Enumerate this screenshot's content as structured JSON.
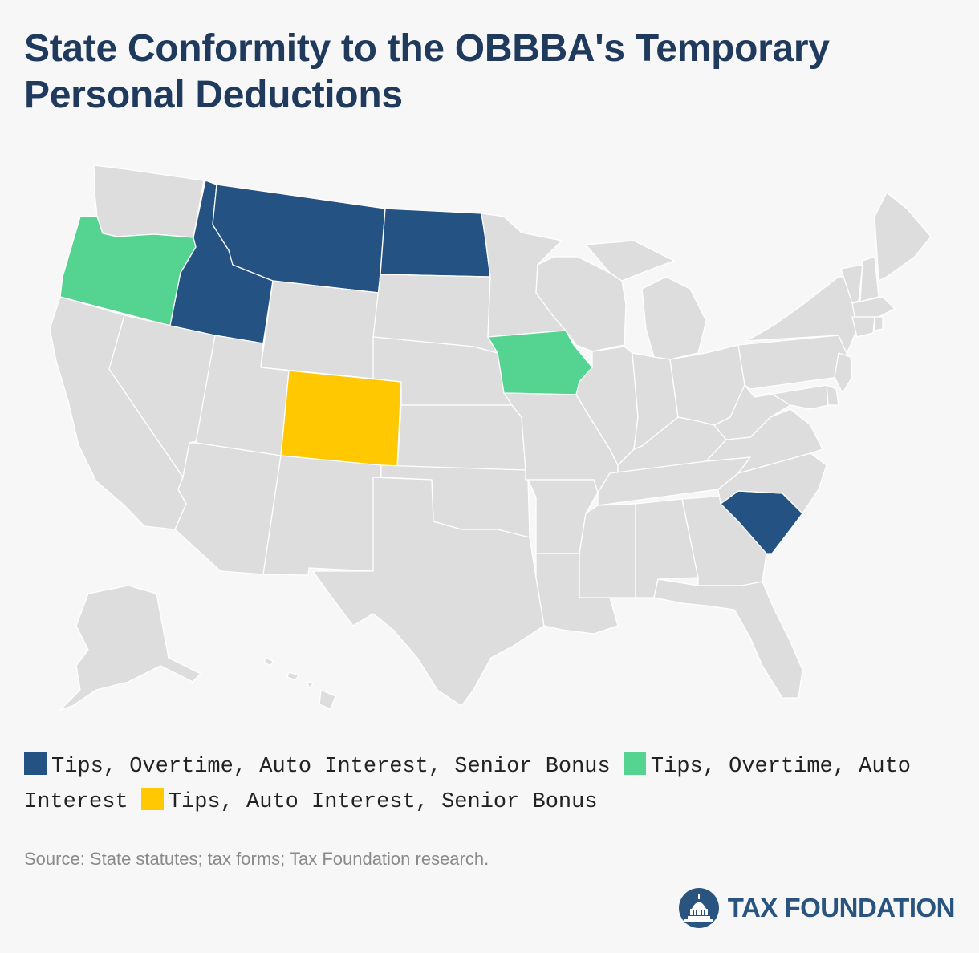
{
  "title": "State Conformity to the OBBBA's Temporary Personal Deductions",
  "colors": {
    "default": "#dddddd",
    "tips_overtime_auto_senior": "#245283",
    "tips_overtime_auto": "#55d390",
    "tips_auto_senior": "#ffc800",
    "title": "#1f3a5c"
  },
  "legend": [
    {
      "label": "Tips, Overtime, Auto Interest, Senior Bonus",
      "color": "#245283"
    },
    {
      "label": "Tips, Overtime, Auto Interest",
      "color": "#55d390"
    },
    {
      "label": "Tips, Auto Interest, Senior Bonus",
      "color": "#ffc800"
    }
  ],
  "state_categories": {
    "Montana": "Tips, Overtime, Auto Interest, Senior Bonus",
    "Idaho": "Tips, Overtime, Auto Interest, Senior Bonus",
    "North Dakota": "Tips, Overtime, Auto Interest, Senior Bonus",
    "South Carolina": "Tips, Overtime, Auto Interest, Senior Bonus",
    "Oregon": "Tips, Overtime, Auto Interest",
    "Iowa": "Tips, Overtime, Auto Interest",
    "Colorado": "Tips, Auto Interest, Senior Bonus"
  },
  "source": "Source: State statutes; tax forms; Tax Foundation research.",
  "logo": {
    "text": "TAX FOUNDATION",
    "icon": "capitol-dome-icon"
  }
}
